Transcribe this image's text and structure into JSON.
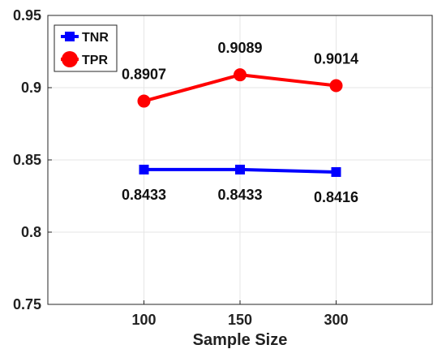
{
  "chart_data": {
    "type": "line",
    "categories": [
      "100",
      "150",
      "300"
    ],
    "series": [
      {
        "name": "TNR",
        "values": [
          0.8433,
          0.8433,
          0.8416
        ],
        "labels": [
          "0.8433",
          "0.8433",
          "0.8416"
        ],
        "color": "#0000ff",
        "marker": "square"
      },
      {
        "name": "TPR",
        "values": [
          0.8907,
          0.9089,
          0.9014
        ],
        "labels": [
          "0.8907",
          "0.9089",
          "0.9014"
        ],
        "color": "#ff0000",
        "marker": "circle"
      }
    ],
    "title": "",
    "xlabel": "Sample Size",
    "ylabel": "",
    "ylim": [
      0.75,
      0.95
    ],
    "yticks": [
      0.75,
      0.8,
      0.85,
      0.9,
      0.95
    ],
    "ytick_labels": [
      "0.75",
      "0.8",
      "0.85",
      "0.9",
      "0.95"
    ],
    "grid": true,
    "legend_position": "top-left"
  }
}
